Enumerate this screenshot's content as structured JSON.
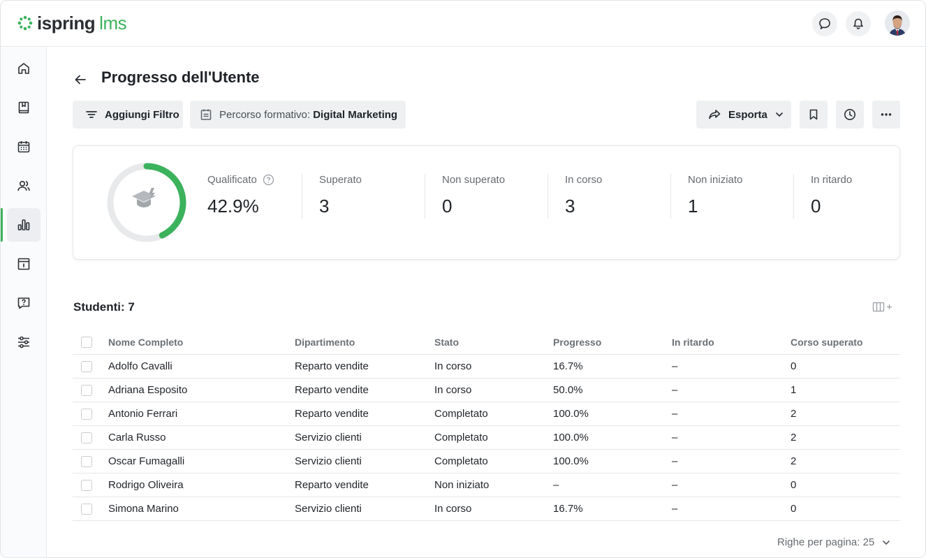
{
  "brand": {
    "name_part1": "ispring",
    "name_part2": "lms",
    "accent": "#3cb25c"
  },
  "header": {
    "icons": [
      "chat-icon",
      "bell-icon"
    ],
    "avatar": "user-avatar"
  },
  "sidebar": {
    "items": [
      {
        "name": "home-icon"
      },
      {
        "name": "book-icon"
      },
      {
        "name": "calendar-icon"
      },
      {
        "name": "users-icon"
      },
      {
        "name": "reports-icon",
        "active": true
      },
      {
        "name": "info-icon"
      },
      {
        "name": "question-icon"
      },
      {
        "name": "settings-sliders-icon"
      }
    ]
  },
  "page": {
    "title": "Progresso dell'Utente"
  },
  "toolbar": {
    "add_filter": "Aggiungi Filtro",
    "path_label": "Percorso formativo:",
    "path_value": "Digital Marketing",
    "export": "Esporta"
  },
  "summary": {
    "qualified_label": "Qualificato",
    "qualified_value": "42.9%",
    "qualified_fraction": 0.429,
    "stats": [
      {
        "label": "Superato",
        "value": "3"
      },
      {
        "label": "Non superato",
        "value": "0"
      },
      {
        "label": "In corso",
        "value": "3"
      },
      {
        "label": "Non iniziato",
        "value": "1"
      },
      {
        "label": "In ritardo",
        "value": "0"
      }
    ]
  },
  "students": {
    "title": "Studenti: 7",
    "columns": [
      "Nome Completo",
      "Dipartimento",
      "Stato",
      "Progresso",
      "In ritardo",
      "Corso superato"
    ],
    "rows": [
      [
        "Adolfo Cavalli",
        "Reparto vendite",
        "In corso",
        "16.7%",
        "–",
        "0"
      ],
      [
        "Adriana Esposito",
        "Reparto vendite",
        "In corso",
        "50.0%",
        "–",
        "1"
      ],
      [
        "Antonio Ferrari",
        "Reparto vendite",
        "Completato",
        "100.0%",
        "–",
        "2"
      ],
      [
        "Carla Russo",
        "Servizio clienti",
        "Completato",
        "100.0%",
        "–",
        "2"
      ],
      [
        "Oscar Fumagalli",
        "Servizio clienti",
        "Completato",
        "100.0%",
        "–",
        "2"
      ],
      [
        "Rodrigo Oliveira",
        "Reparto vendite",
        "Non iniziato",
        "–",
        "–",
        "0"
      ],
      [
        "Simona Marino",
        "Servizio clienti",
        "In corso",
        "16.7%",
        "–",
        "0"
      ]
    ]
  },
  "pager": {
    "label": "Righe per pagina: 25"
  }
}
